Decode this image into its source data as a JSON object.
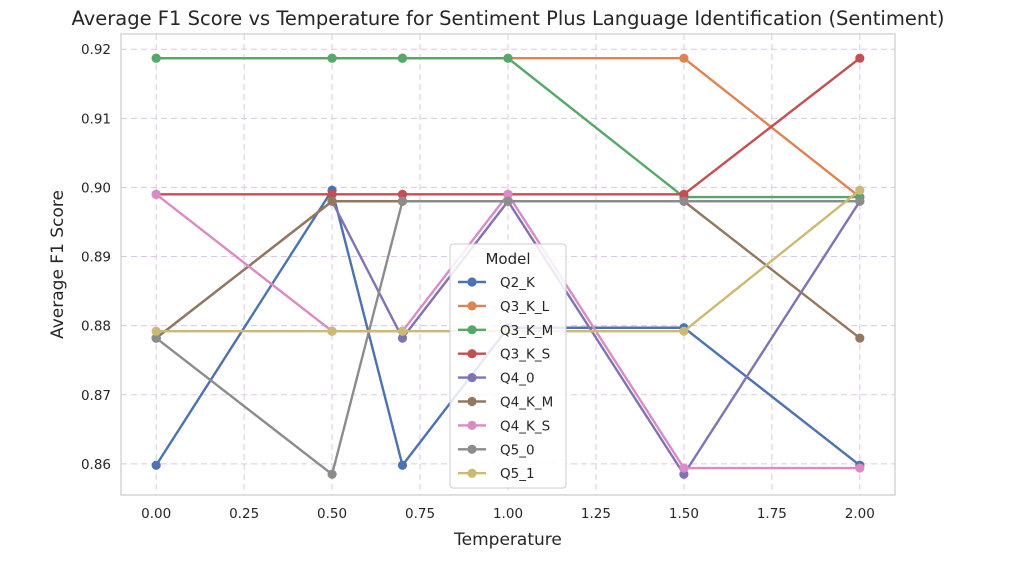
{
  "chart_data": {
    "type": "line",
    "title": "Average F1 Score vs Temperature for Sentiment Plus Language Identification (Sentiment)",
    "xlabel": "Temperature",
    "ylabel": "Average F1 Score",
    "xlim": [
      -0.1,
      2.1
    ],
    "ylim": [
      0.8555,
      0.9222
    ],
    "xticks": [
      "0.00",
      "0.25",
      "0.50",
      "0.75",
      "1.00",
      "1.25",
      "1.50",
      "1.75",
      "2.00"
    ],
    "yticks": [
      "0.86",
      "0.87",
      "0.88",
      "0.89",
      "0.90",
      "0.91",
      "0.92"
    ],
    "grid": true,
    "legend_title": "Model",
    "legend_position": "center-bottom",
    "x": [
      0.0,
      0.5,
      0.7,
      1.0,
      1.5,
      2.0
    ],
    "series": [
      {
        "name": "Q2_K",
        "color": "#4c72b0",
        "values": [
          0.8598,
          0.8996,
          0.8598,
          0.8797,
          0.8797,
          0.8598
        ]
      },
      {
        "name": "Q3_K_L",
        "color": "#dd8452",
        "values": [
          0.9187,
          0.9187,
          0.9187,
          0.9187,
          0.9187,
          0.8986
        ]
      },
      {
        "name": "Q3_K_M",
        "color": "#55a868",
        "values": [
          0.9187,
          0.9187,
          0.9187,
          0.9187,
          0.8986,
          0.8986
        ]
      },
      {
        "name": "Q3_K_S",
        "color": "#c44e52",
        "values": [
          0.899,
          0.899,
          0.899,
          0.899,
          0.899,
          0.9187
        ]
      },
      {
        "name": "Q4_0",
        "color": "#8172b3",
        "values": [
          0.8782,
          0.898,
          0.8782,
          0.898,
          0.8585,
          0.898
        ]
      },
      {
        "name": "Q4_K_M",
        "color": "#937860",
        "values": [
          0.8782,
          0.898,
          0.898,
          0.898,
          0.898,
          0.8782
        ]
      },
      {
        "name": "Q4_K_S",
        "color": "#da8bc3",
        "values": [
          0.899,
          0.8792,
          0.8792,
          0.899,
          0.8594,
          0.8594
        ]
      },
      {
        "name": "Q5_0",
        "color": "#8c8c8c",
        "values": [
          0.8782,
          0.8585,
          0.898,
          0.898,
          0.898,
          0.898
        ]
      },
      {
        "name": "Q5_1",
        "color": "#ccb974",
        "values": [
          0.8792,
          0.8792,
          0.8792,
          0.8792,
          0.8792,
          0.8996
        ]
      }
    ]
  }
}
